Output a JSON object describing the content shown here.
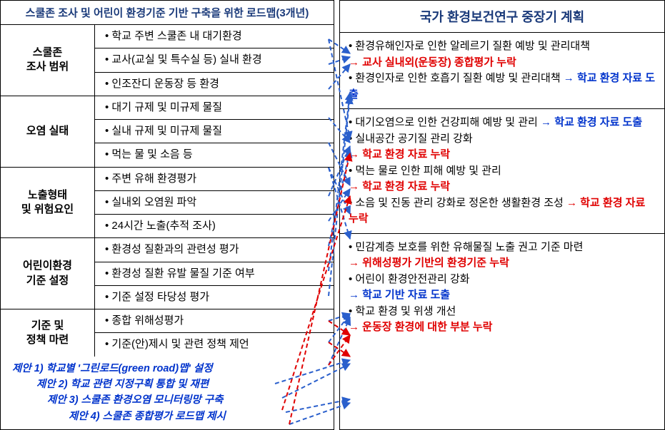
{
  "left": {
    "title": "스쿨존 조사 및 어린이 환경기준 기반 구축을 위한 로드맵(3개년)",
    "categories": [
      {
        "name": "스쿨존\n조사 범위",
        "items": [
          "학교 주변 스쿨존 내 대기환경",
          "교사(교실 및 특수실 등) 실내 환경",
          "인조잔디 운동장 등 환경"
        ]
      },
      {
        "name": "오염 실태",
        "items": [
          "대기 규제 및 미규제 물질",
          "실내 규제 및 미규제 물질",
          "먹는 물 및 소음 등"
        ]
      },
      {
        "name": "노출형태\n및 위험요인",
        "items": [
          "주변 유해 환경평가",
          "실내외 오염원 파악",
          "24시간 노출(추적 조사)"
        ]
      },
      {
        "name": "어린이환경\n기준 설정",
        "items": [
          "환경성 질환과의 관련성 평가",
          "환경성 질환 유발 물질 기준 여부",
          "기준 설정 타당성 평가"
        ]
      },
      {
        "name": "기준 및\n정책 마련",
        "items": [
          "종합 위해성평가",
          "기준(안)제시 및 관련 정책 제언"
        ]
      }
    ],
    "proposals": [
      "제안 1) 학교별 '그린로드(green road)맵' 설정",
      "제안 2) 학교 관련 지정구획 통합 및 재편",
      "제안 3) 스쿨존 환경오염 모니터링망 구축",
      "제안 4) 스쿨존 종합평가 로드맵 제시"
    ]
  },
  "right": {
    "title": "국가 환경보건연구 중장기 계획",
    "blocks": [
      [
        {
          "text": "환경유해인자로 인한 알레르기 질환 예방 및 관리대책",
          "noteRed": "→ 교사 실내외(운동장) 종합평가 누락"
        },
        {
          "text": "환경인자로 인한 호흡기 질환 예방 및 관리대책",
          "noteBlueInline": "→ 학교 환경 자료 도출"
        }
      ],
      [
        {
          "text": "대기오염으로 인한 건강피해 예방 및 관리",
          "noteBlueInline": "→ 학교 환경 자료 도출"
        },
        {
          "textPlain": ""
        },
        {
          "text": "실내공간 공기질 관리 강화",
          "noteRed": "→ 학교 환경 자료 누락"
        },
        {
          "text": "먹는 물로 인한 피해 예방 및 관리",
          "noteRed": "→ 학교 환경 자료 누락"
        },
        {
          "text": "소음 및 진동 관리 강화로 정온한 생활환경 조성",
          "noteRedInline": "→ 학교 환경 자료 누락"
        }
      ],
      [
        {
          "text": "민감계층 보호를 위한 유해물질 노출 권고 기준 마련",
          "noteRed": "→ 위해성평가 기반의 환경기준 누락"
        },
        {
          "text": "어린이 환경안전관리 강화",
          "noteBlue": "→ 학교 기반 자료 도출"
        },
        {
          "text": "학교 환경 및 위생 개선",
          "noteRed": "→ 운동장 환경에 대한 부분 누락"
        }
      ]
    ]
  },
  "arrows": {
    "blue": {
      "color": "#2a5fcc",
      "dash": "6,4",
      "width": 2
    },
    "red": {
      "color": "#e00000",
      "dash": "6,4",
      "width": 2
    },
    "lines_blue": [
      [
        460,
        55,
        490,
        75
      ],
      [
        460,
        90,
        490,
        80
      ],
      [
        460,
        125,
        490,
        90
      ],
      [
        460,
        55,
        490,
        195
      ],
      [
        460,
        165,
        490,
        200
      ],
      [
        460,
        200,
        490,
        260
      ],
      [
        460,
        235,
        490,
        300
      ],
      [
        460,
        235,
        490,
        335
      ],
      [
        460,
        275,
        490,
        205
      ],
      [
        460,
        310,
        490,
        265
      ],
      [
        460,
        345,
        490,
        210
      ],
      [
        460,
        380,
        490,
        130
      ],
      [
        460,
        415,
        490,
        135
      ],
      [
        460,
        450,
        490,
        440
      ],
      [
        460,
        480,
        490,
        440
      ],
      [
        460,
        512,
        490,
        445
      ],
      [
        385,
        538,
        490,
        505
      ],
      [
        395,
        558,
        490,
        510
      ],
      [
        400,
        578,
        490,
        560
      ],
      [
        405,
        595,
        490,
        565
      ]
    ],
    "lines_red": [
      [
        460,
        480,
        490,
        500
      ],
      [
        460,
        450,
        490,
        470
      ],
      [
        405,
        595,
        490,
        215
      ],
      [
        395,
        575,
        490,
        275
      ],
      [
        460,
        512,
        490,
        470
      ]
    ]
  }
}
